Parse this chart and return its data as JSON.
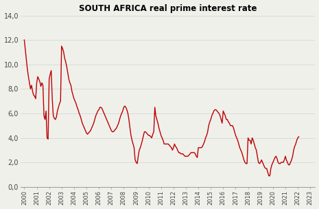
{
  "title": "SOUTH AFRICA real prime interest rate",
  "line_color": "#bb0000",
  "background_color": "#f0f0eb",
  "ylim": [
    0,
    14
  ],
  "yticks": [
    0,
    2,
    4,
    6,
    8,
    10,
    12,
    14
  ],
  "ytick_labels": [
    "0,0",
    "2,0",
    "4,0",
    "6,0",
    "8,0",
    "10,0",
    "12,0",
    "14,0"
  ],
  "xtick_labels": [
    "2000",
    "2001",
    "2002",
    "2003",
    "2004",
    "2005",
    "2006",
    "2007",
    "2008",
    "2009",
    "2010",
    "2011",
    "2012",
    "2013",
    "2014",
    "2015",
    "2016",
    "2017",
    "2018",
    "2019",
    "2020",
    "2021",
    "2022",
    "2023"
  ],
  "data": [
    12.0,
    11.2,
    10.4,
    9.6,
    9.0,
    8.5,
    8.0,
    8.3,
    7.8,
    7.5,
    7.4,
    7.2,
    8.5,
    9.0,
    8.8,
    8.6,
    8.2,
    8.5,
    8.3,
    5.8,
    5.5,
    6.2,
    4.0,
    3.9,
    8.8,
    9.2,
    9.5,
    7.2,
    5.8,
    5.6,
    5.5,
    5.7,
    6.2,
    6.5,
    6.8,
    7.0,
    11.5,
    11.3,
    11.0,
    10.5,
    10.2,
    9.8,
    9.3,
    8.8,
    8.5,
    8.3,
    7.8,
    7.5,
    7.2,
    7.0,
    6.8,
    6.5,
    6.3,
    6.0,
    5.8,
    5.5,
    5.2,
    5.0,
    4.8,
    4.6,
    4.4,
    4.3,
    4.4,
    4.5,
    4.6,
    4.8,
    5.0,
    5.2,
    5.5,
    5.8,
    6.0,
    6.2,
    6.3,
    6.5,
    6.5,
    6.4,
    6.2,
    6.0,
    5.8,
    5.6,
    5.4,
    5.2,
    5.0,
    4.8,
    4.6,
    4.5,
    4.5,
    4.6,
    4.7,
    4.8,
    5.0,
    5.2,
    5.5,
    5.8,
    6.0,
    6.2,
    6.5,
    6.6,
    6.5,
    6.3,
    6.0,
    5.5,
    4.8,
    4.2,
    3.8,
    3.5,
    3.2,
    2.2,
    2.0,
    1.9,
    2.5,
    3.0,
    3.2,
    3.5,
    3.8,
    4.2,
    4.5,
    4.5,
    4.4,
    4.3,
    4.2,
    4.2,
    4.1,
    4.0,
    4.3,
    4.5,
    6.5,
    5.8,
    5.5,
    5.2,
    4.8,
    4.5,
    4.2,
    4.0,
    3.8,
    3.5,
    3.5,
    3.5,
    3.5,
    3.5,
    3.4,
    3.3,
    3.2,
    3.0,
    3.2,
    3.5,
    3.3,
    3.2,
    3.0,
    2.8,
    2.8,
    2.7,
    2.7,
    2.7,
    2.6,
    2.5,
    2.5,
    2.5,
    2.5,
    2.6,
    2.7,
    2.8,
    2.8,
    2.8,
    2.8,
    2.7,
    2.5,
    2.4,
    3.2,
    3.2,
    3.2,
    3.2,
    3.3,
    3.5,
    3.7,
    4.0,
    4.2,
    4.5,
    5.0,
    5.3,
    5.5,
    5.8,
    6.0,
    6.2,
    6.3,
    6.3,
    6.2,
    6.1,
    6.0,
    5.8,
    5.5,
    5.2,
    6.2,
    6.0,
    5.8,
    5.5,
    5.5,
    5.3,
    5.2,
    5.0,
    5.0,
    5.0,
    4.8,
    4.5,
    4.2,
    4.0,
    3.8,
    3.5,
    3.2,
    3.0,
    2.8,
    2.5,
    2.2,
    2.0,
    1.9,
    1.9,
    4.0,
    3.8,
    3.8,
    3.5,
    4.0,
    3.8,
    3.5,
    3.2,
    3.0,
    2.5,
    2.0,
    1.9,
    2.0,
    2.2,
    2.0,
    1.8,
    1.6,
    1.5,
    1.5,
    1.2,
    0.9,
    0.9,
    1.5,
    1.8,
    2.0,
    2.2,
    2.4,
    2.5,
    2.3,
    2.0,
    1.9,
    1.9,
    2.0,
    2.0,
    2.0,
    2.2,
    2.5,
    2.2,
    2.0,
    1.8,
    1.8,
    2.0,
    2.2,
    2.5,
    3.0,
    3.3,
    3.5,
    3.8,
    4.0,
    4.1
  ]
}
